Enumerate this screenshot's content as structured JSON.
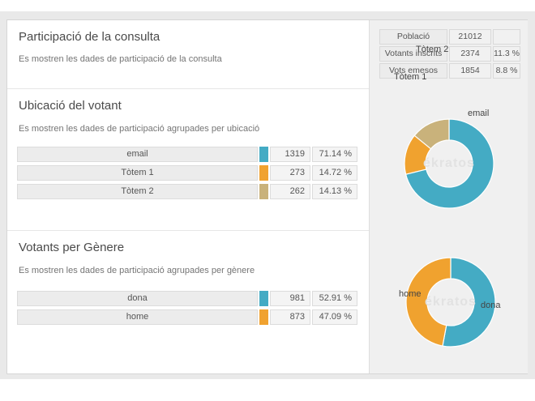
{
  "header": {
    "title": "Participació de la consulta",
    "subtitle": "Es mostren les dades de participació de la consulta"
  },
  "summary": {
    "rows": [
      {
        "label": "Població",
        "value": "21012",
        "percent": ""
      },
      {
        "label": "Votants inscrits",
        "value": "2374",
        "percent": "11.3 %"
      },
      {
        "label": "Vots emesos",
        "value": "1854",
        "percent": "8.8 %"
      }
    ]
  },
  "location": {
    "title": "Ubicació del votant",
    "subtitle": "Es mostren les dades de participació agrupades per ubicació",
    "rows": [
      {
        "label": "email",
        "value": "1319",
        "percent": "71.14 %",
        "color": "#44abc4"
      },
      {
        "label": "Tòtem 1",
        "value": "273",
        "percent": "14.72 %",
        "color": "#f0a22f"
      },
      {
        "label": "Tòtem 2",
        "value": "262",
        "percent": "14.13 %",
        "color": "#c9b27b"
      }
    ]
  },
  "gender": {
    "title": "Votants per Gènere",
    "subtitle": "Es mostren les dades de participació agrupades per gènere",
    "rows": [
      {
        "label": "dona",
        "value": "981",
        "percent": "52.91 %",
        "color": "#44abc4"
      },
      {
        "label": "home",
        "value": "873",
        "percent": "47.09 %",
        "color": "#f0a22f"
      }
    ]
  },
  "watermark": "ékratos",
  "colors": {
    "teal": "#44abc4",
    "orange": "#f0a22f",
    "tan": "#c9b27b",
    "panel_bg": "#f0f0f0",
    "page_band": "#e9e9e9"
  },
  "chart_data": [
    {
      "type": "pie",
      "title": "Ubicació del votant",
      "labels": [
        "email",
        "Tòtem 1",
        "Tòtem 2"
      ],
      "values": [
        1319,
        273,
        262
      ],
      "percents": [
        71.14,
        14.72,
        14.13
      ],
      "colors": [
        "#44abc4",
        "#f0a22f",
        "#c9b27b"
      ],
      "donut": true,
      "start_angle_deg": 0,
      "direction": "clockwise",
      "center_watermark": "ékratos",
      "legend_position": "labels-on-chart"
    },
    {
      "type": "pie",
      "title": "Votants per Gènere",
      "labels": [
        "dona",
        "home"
      ],
      "values": [
        981,
        873
      ],
      "percents": [
        52.91,
        47.09
      ],
      "colors": [
        "#44abc4",
        "#f0a22f"
      ],
      "donut": true,
      "start_angle_deg": 0,
      "direction": "clockwise",
      "center_watermark": "ékratos",
      "legend_position": "labels-on-chart"
    }
  ]
}
